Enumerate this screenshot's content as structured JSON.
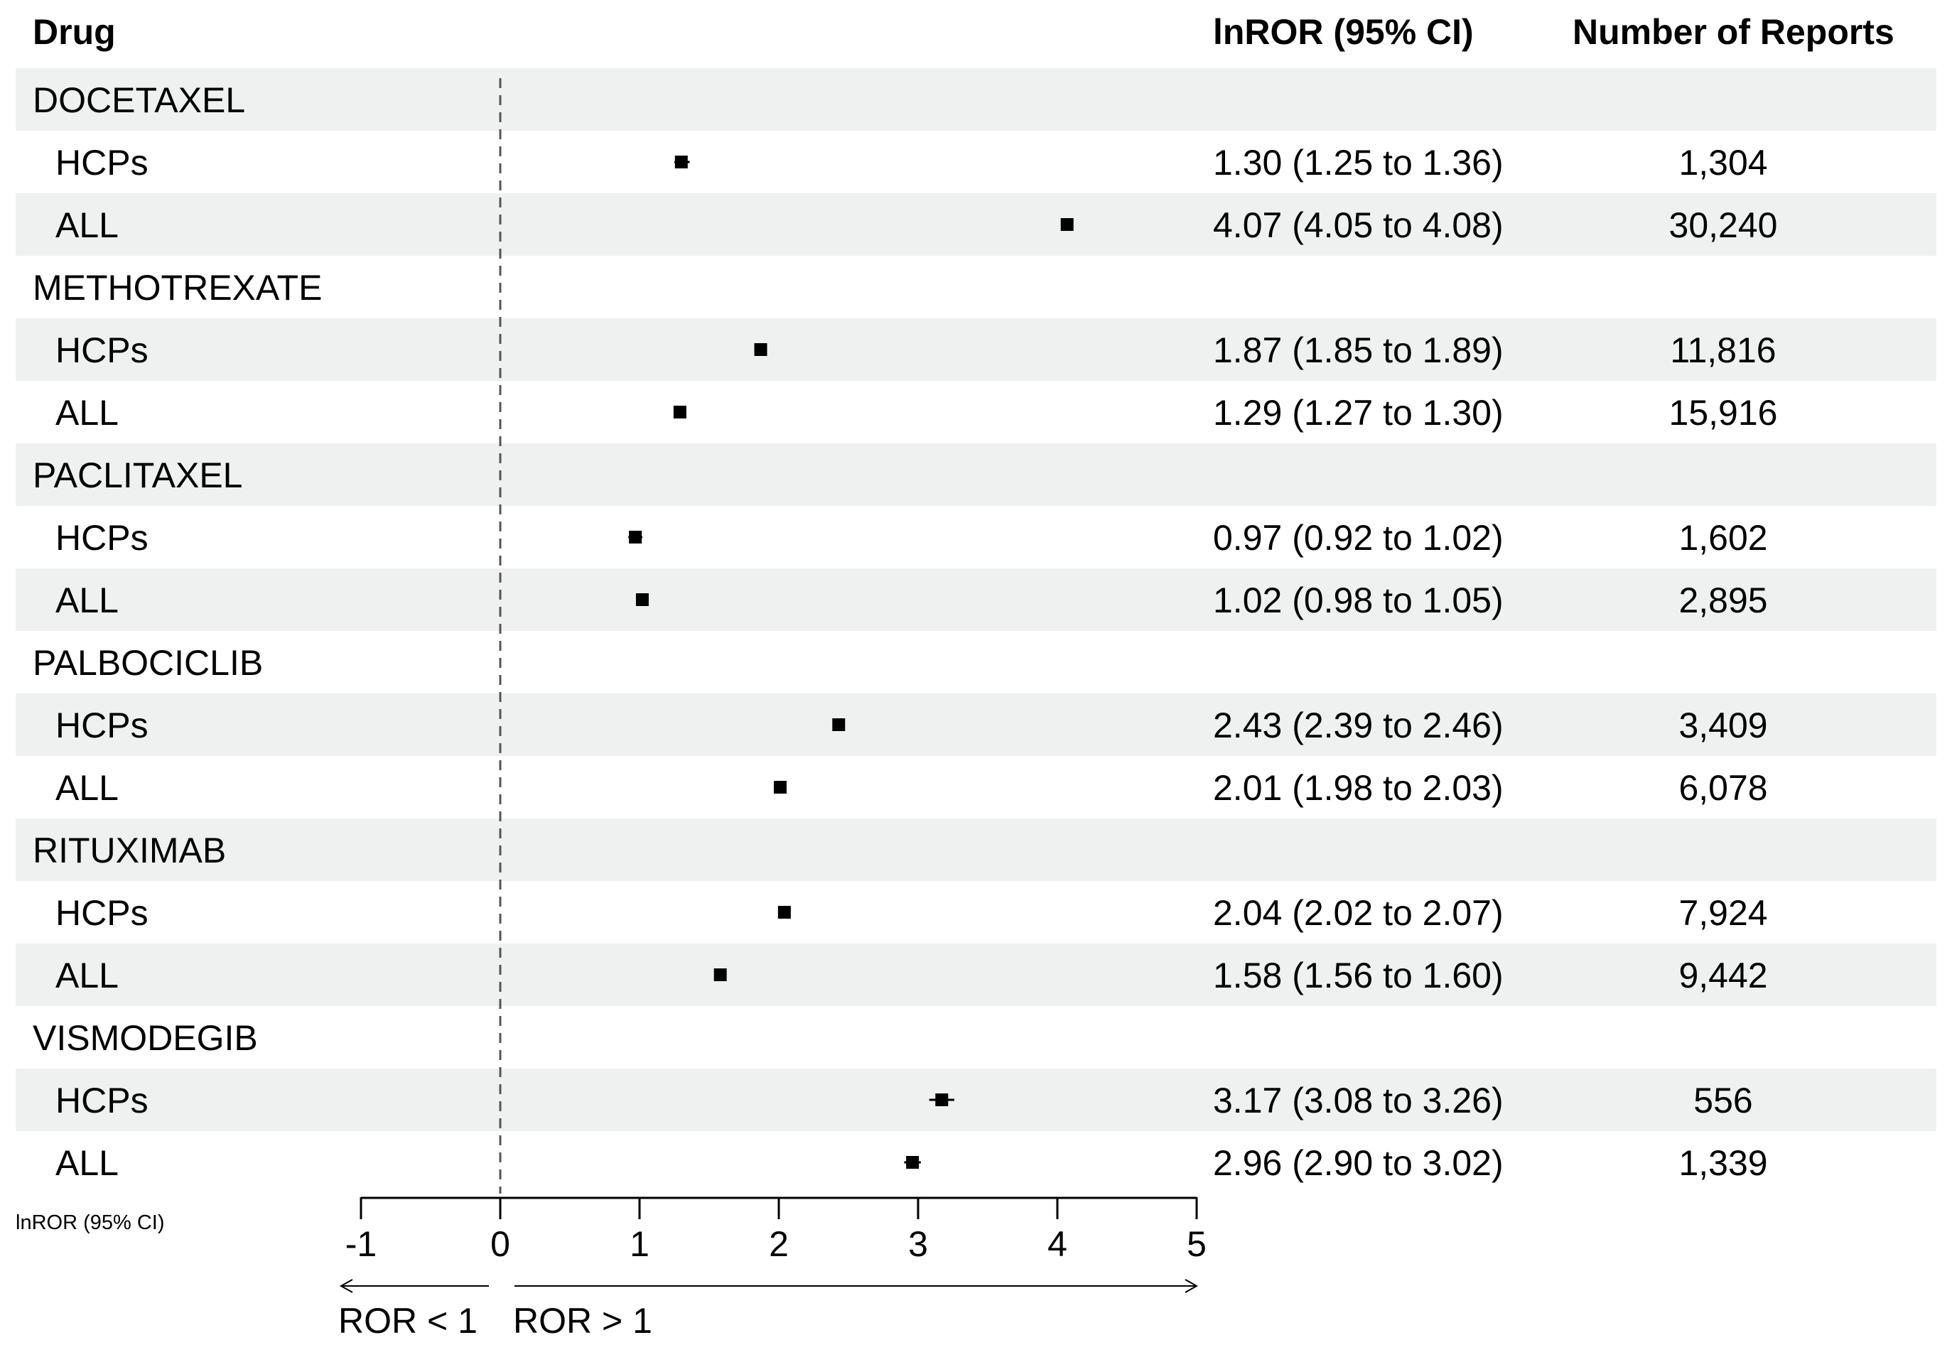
{
  "headers": {
    "drug": "Drug",
    "estimate": "lnROR (95% CI)",
    "reports": "Number of Reports"
  },
  "chart_data": {
    "type": "forest",
    "title": "",
    "xlabel": "lnROR (95% CI)",
    "xlim": [
      -1,
      5
    ],
    "xticks": [
      -1,
      0,
      1,
      2,
      3,
      4,
      5
    ],
    "reference_line": 0,
    "direction_labels": {
      "left": "ROR < 1",
      "right": "ROR > 1"
    },
    "groups": [
      {
        "name": "DOCETAXEL",
        "rows": [
          {
            "label": "HCPs",
            "est": 1.3,
            "lo": 1.25,
            "hi": 1.36,
            "text": "1.30 (1.25 to 1.36)",
            "n": "1,304"
          },
          {
            "label": "ALL",
            "est": 4.07,
            "lo": 4.05,
            "hi": 4.08,
            "text": "4.07 (4.05 to 4.08)",
            "n": "30,240"
          }
        ]
      },
      {
        "name": "METHOTREXATE",
        "rows": [
          {
            "label": "HCPs",
            "est": 1.87,
            "lo": 1.85,
            "hi": 1.89,
            "text": "1.87 (1.85 to 1.89)",
            "n": "11,816"
          },
          {
            "label": "ALL",
            "est": 1.29,
            "lo": 1.27,
            "hi": 1.3,
            "text": "1.29 (1.27 to 1.30)",
            "n": "15,916"
          }
        ]
      },
      {
        "name": "PACLITAXEL",
        "rows": [
          {
            "label": "HCPs",
            "est": 0.97,
            "lo": 0.92,
            "hi": 1.02,
            "text": "0.97 (0.92 to 1.02)",
            "n": "1,602"
          },
          {
            "label": "ALL",
            "est": 1.02,
            "lo": 0.98,
            "hi": 1.05,
            "text": "1.02 (0.98 to 1.05)",
            "n": "2,895"
          }
        ]
      },
      {
        "name": "PALBOCICLIB",
        "rows": [
          {
            "label": "HCPs",
            "est": 2.43,
            "lo": 2.39,
            "hi": 2.46,
            "text": "2.43 (2.39 to 2.46)",
            "n": "3,409"
          },
          {
            "label": "ALL",
            "est": 2.01,
            "lo": 1.98,
            "hi": 2.03,
            "text": "2.01 (1.98 to 2.03)",
            "n": "6,078"
          }
        ]
      },
      {
        "name": "RITUXIMAB",
        "rows": [
          {
            "label": "HCPs",
            "est": 2.04,
            "lo": 2.02,
            "hi": 2.07,
            "text": "2.04 (2.02 to 2.07)",
            "n": "7,924"
          },
          {
            "label": "ALL",
            "est": 1.58,
            "lo": 1.56,
            "hi": 1.6,
            "text": "1.58 (1.56 to 1.60)",
            "n": "9,442"
          }
        ]
      },
      {
        "name": "VISMODEGIB",
        "rows": [
          {
            "label": "HCPs",
            "est": 3.17,
            "lo": 3.08,
            "hi": 3.26,
            "text": "3.17 (3.08 to 3.26)",
            "n": "556"
          },
          {
            "label": "ALL",
            "est": 2.96,
            "lo": 2.9,
            "hi": 3.02,
            "text": "2.96 (2.90 to 3.02)",
            "n": "1,339"
          }
        ]
      }
    ]
  },
  "colors": {
    "band": "#eff1f1",
    "marker": "#000000",
    "refline": "#555555"
  }
}
